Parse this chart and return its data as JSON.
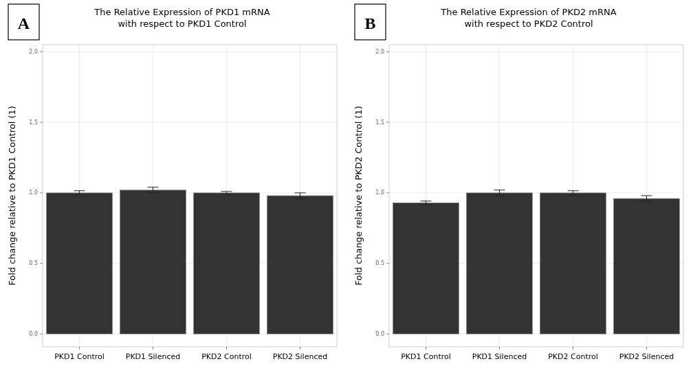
{
  "chart_data": [
    {
      "type": "bar",
      "title": "The Relative Expression of PKD1 mRNA\nwith respect to PKD1 Control",
      "ylabel": "Fold change relative to PKD1 Control (1)",
      "annotations": [
        "A"
      ],
      "categories": [
        "PKD1 Control",
        "PKD1 Silenced",
        "PKD2 Control",
        "PKD2 Silenced"
      ],
      "values": [
        1.0,
        1.02,
        1.0,
        0.98
      ],
      "errors": [
        0.015,
        0.02,
        0.01,
        0.02
      ],
      "color": "#333333",
      "ylim": [
        -0.09,
        2.05
      ],
      "yticks": [
        {
          "value": 0,
          "label": "0.0"
        },
        {
          "value": 0.5,
          "label": "0.5"
        },
        {
          "value": 1,
          "label": "1.0"
        },
        {
          "value": 1.5,
          "label": "1.5"
        },
        {
          "value": 2,
          "label": "2.0"
        }
      ],
      "grid": true
    },
    {
      "type": "bar",
      "title": "The Relative Expression of PKD2 mRNA\nwith respect to PKD2 Control",
      "ylabel": "Fold change relative to PKD2 Control (1)",
      "annotations": [
        "B"
      ],
      "categories": [
        "PKD1 Control",
        "PKD1 Silenced",
        "PKD2 Control",
        "PKD2 Silenced"
      ],
      "values": [
        0.93,
        1.0,
        1.0,
        0.96
      ],
      "errors": [
        0.012,
        0.02,
        0.015,
        0.02
      ],
      "color": "#333333",
      "ylim": [
        -0.09,
        2.05
      ],
      "yticks": [
        {
          "value": 0,
          "label": "0.0"
        },
        {
          "value": 0.5,
          "label": "0.5"
        },
        {
          "value": 1,
          "label": "1.0"
        },
        {
          "value": 1.5,
          "label": "1.5"
        },
        {
          "value": 2,
          "label": "2.0"
        }
      ],
      "grid": true
    }
  ]
}
